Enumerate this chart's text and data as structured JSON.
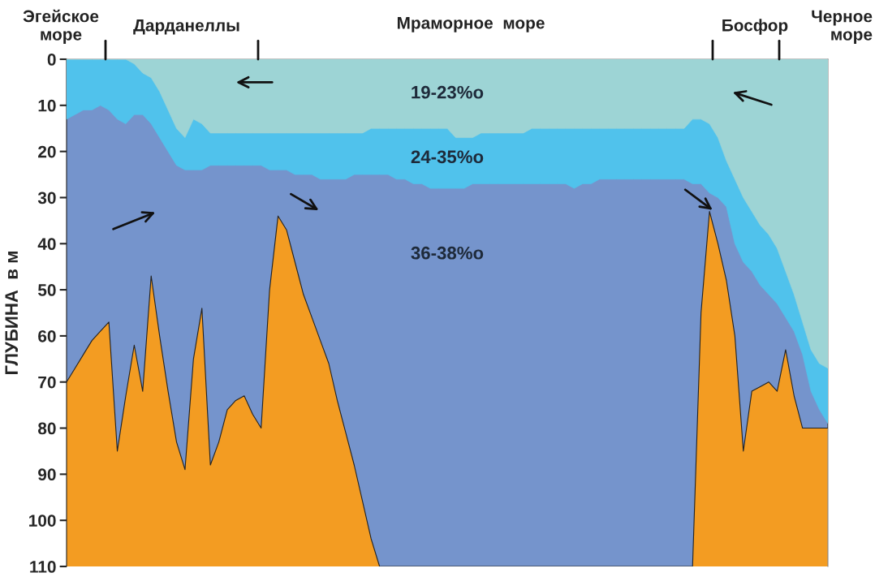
{
  "chart_data": {
    "type": "area",
    "ylabel": "ГЛУБИНА  в м",
    "categories": [
      null,
      null,
      null,
      null,
      null,
      null,
      null,
      null,
      null,
      null,
      null,
      null,
      null,
      null,
      null,
      null,
      null,
      null,
      null,
      null,
      null,
      null,
      null,
      null,
      null,
      null,
      null,
      null,
      null,
      null,
      null,
      null,
      null,
      null,
      null,
      null,
      null,
      null,
      null,
      null,
      null,
      null,
      null,
      null,
      null,
      null,
      null,
      null,
      null,
      null,
      null,
      null,
      null,
      null,
      null,
      null,
      null,
      null,
      null,
      null,
      null,
      null,
      null,
      null,
      null,
      null,
      null,
      null,
      null,
      null,
      null,
      null,
      null,
      null,
      null,
      null,
      null,
      null,
      null,
      null,
      null,
      null,
      null,
      null,
      null,
      null,
      null,
      null,
      null,
      null,
      null
    ],
    "ylim": [
      110,
      0
    ],
    "yticks": [
      0,
      10,
      20,
      30,
      40,
      50,
      60,
      70,
      80,
      90,
      100,
      110
    ],
    "tick_labels": "y",
    "grid": false,
    "legend": false,
    "series": [
      {
        "name": "19-23%о",
        "color": "#9dd4d5",
        "values": [
          0,
          0,
          0,
          0,
          0,
          0,
          0,
          0,
          1,
          3,
          4,
          7,
          11,
          15,
          17,
          13,
          14,
          16,
          16,
          16,
          16,
          16,
          16,
          16,
          16,
          16,
          16,
          16,
          16,
          16,
          16,
          16,
          16,
          16,
          16,
          16,
          15,
          15,
          15,
          15,
          15,
          15,
          15,
          15,
          15,
          15,
          17,
          17,
          17,
          16,
          16,
          16,
          16,
          16,
          16,
          15,
          15,
          15,
          15,
          15,
          15,
          15,
          15,
          15,
          15,
          15,
          15,
          15,
          15,
          15,
          15,
          15,
          15,
          15,
          13,
          13,
          14,
          17,
          22,
          26,
          30,
          33,
          36,
          38,
          41,
          46,
          51,
          57,
          63,
          66,
          67
        ]
      },
      {
        "name": "24-35%о",
        "color": "#50c2ec",
        "values": [
          13,
          12,
          11,
          11,
          10,
          11,
          13,
          14,
          12,
          12,
          14,
          17,
          20,
          23,
          24,
          24,
          24,
          23,
          23,
          23,
          23,
          23,
          23,
          23,
          24,
          24,
          24,
          25,
          25,
          25,
          26,
          26,
          26,
          26,
          25,
          25,
          25,
          25,
          25,
          26,
          26,
          27,
          27,
          28,
          28,
          28,
          28,
          28,
          27,
          27,
          27,
          27,
          27,
          27,
          27,
          27,
          27,
          27,
          27,
          27,
          28,
          27,
          27,
          26,
          26,
          26,
          26,
          26,
          26,
          26,
          26,
          26,
          26,
          26,
          27,
          27,
          29,
          30,
          32,
          40,
          44,
          46,
          49,
          51,
          53,
          56,
          59,
          64,
          72,
          76,
          79
        ]
      },
      {
        "name": "36-38%о",
        "color": "#7594cc",
        "values": [
          70,
          67,
          64,
          61,
          59,
          57,
          85,
          73,
          62,
          72,
          47,
          60,
          72,
          83,
          89,
          65,
          54,
          88,
          83,
          76,
          74,
          73,
          77,
          80,
          50,
          34,
          37,
          44,
          51,
          56,
          61,
          66,
          74,
          81,
          88,
          96,
          104,
          110,
          110,
          110,
          110,
          110,
          110,
          110,
          110,
          110,
          110,
          110,
          110,
          110,
          110,
          110,
          110,
          110,
          110,
          110,
          110,
          110,
          110,
          110,
          110,
          110,
          110,
          110,
          110,
          110,
          110,
          110,
          110,
          110,
          110,
          110,
          110,
          110,
          110,
          55,
          33,
          40,
          48,
          60,
          85,
          72,
          71,
          70,
          72,
          63,
          73,
          80,
          80,
          80,
          80
        ]
      }
    ],
    "annotations": [
      "Эгейское\nморе",
      "Дарданеллы",
      "Мраморное  море",
      "Босфор",
      "Черное\nморе"
    ]
  }
}
